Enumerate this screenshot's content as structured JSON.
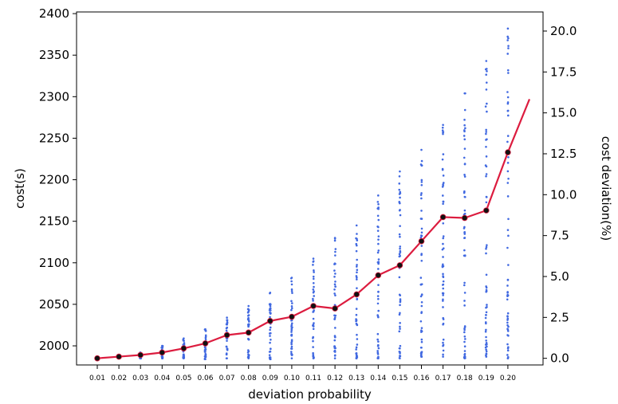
{
  "chart_data": {
    "type": "line",
    "xlabel": "deviation probability",
    "ylabel": "cost(s)",
    "y2label": "cost deviation(%)",
    "categories": [
      "0.01",
      "0.02",
      "0.03",
      "0.04",
      "0.05",
      "0.06",
      "0.07",
      "0.08",
      "0.09",
      "0.10",
      "0.11",
      "0.12",
      "0.13",
      "0.14",
      "0.15",
      "0.16",
      "0.17",
      "0.18",
      "0.19",
      "0.20"
    ],
    "ylim": [
      1977,
      2402
    ],
    "y_ticks": [
      2000,
      2050,
      2100,
      2150,
      2200,
      2250,
      2300,
      2350,
      2400
    ],
    "y2_ticks": [
      "0.0",
      "2.5",
      "5.0",
      "7.5",
      "10.0",
      "12.5",
      "15.0",
      "17.5",
      "20.0"
    ],
    "y2_baseline_cost": 1985,
    "y2_units_per_percent": 19.7,
    "series": [
      {
        "values": [
          1985,
          1987,
          1989,
          1992,
          1997,
          2003,
          2013,
          2016,
          2030,
          2035,
          2048,
          2045,
          2062,
          2085,
          2097,
          2126,
          2155,
          2154,
          2163,
          2233
        ],
        "color": "#dc1c3f",
        "marker_color": "#111111",
        "extension_x": 21.0,
        "extension_cost": 2297
      }
    ],
    "scatter_ranges": [
      [
        1984,
        1986
      ],
      [
        1985,
        1988
      ],
      [
        1985,
        1992
      ],
      [
        1985,
        2000
      ],
      [
        1985,
        2009
      ],
      [
        1984,
        2020
      ],
      [
        1985,
        2034
      ],
      [
        1985,
        2048
      ],
      [
        1984,
        2064
      ],
      [
        1985,
        2082
      ],
      [
        1985,
        2105
      ],
      [
        1985,
        2130
      ],
      [
        1985,
        2145
      ],
      [
        1985,
        2181
      ],
      [
        1985,
        2210
      ],
      [
        1987,
        2236
      ],
      [
        1987,
        2266
      ],
      [
        1985,
        2304
      ],
      [
        1987,
        2343
      ],
      [
        1985,
        2382
      ]
    ],
    "scatter_color": "#4169e1",
    "grid": false
  }
}
